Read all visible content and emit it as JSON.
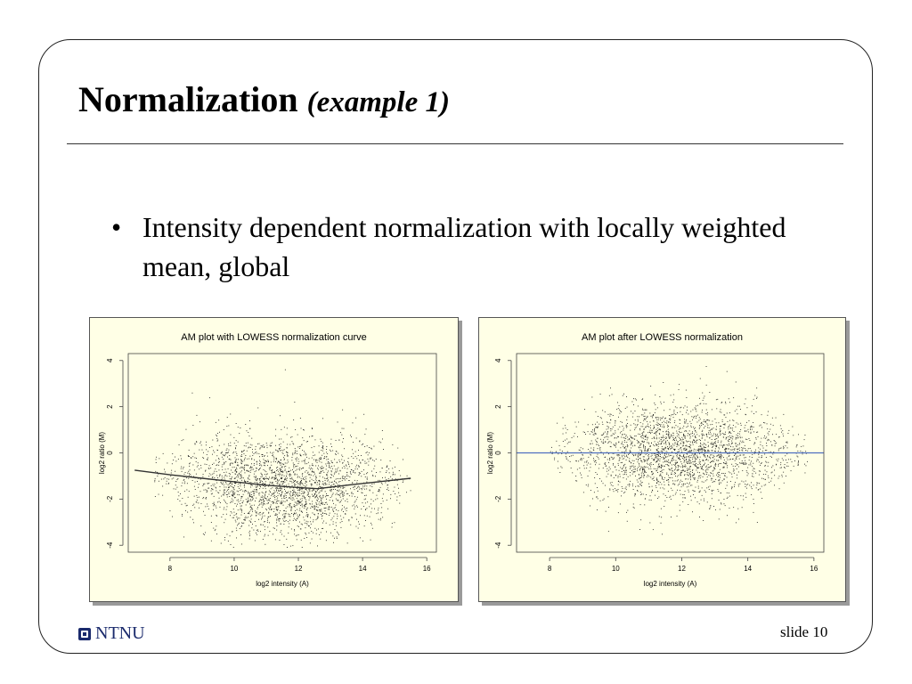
{
  "slide": {
    "title_main": "Normalization",
    "title_sub": "(example 1)",
    "bullet_marker": "•",
    "bullet_text": "Intensity dependent normalization with locally weighted mean, global",
    "logo_text": "NTNU",
    "slide_number": "slide 10"
  },
  "chart_data": [
    {
      "type": "scatter",
      "title": "AM plot with LOWESS normalization curve",
      "xlabel": "log2 intensity (A)",
      "ylabel": "log2 ratio (M)",
      "xlim": [
        6.7,
        16.3
      ],
      "ylim": [
        -4.3,
        4.3
      ],
      "xticks": [
        8,
        10,
        12,
        14,
        16
      ],
      "yticks": [
        -4,
        -2,
        0,
        2,
        4
      ],
      "point_distribution": {
        "x_range": [
          7.5,
          15.5
        ],
        "center_curve": "lowess",
        "spread": 1.1
      },
      "lowess_curve": {
        "x": [
          6.9,
          8.0,
          9.0,
          10.0,
          11.0,
          12.0,
          12.6,
          13.5,
          14.5,
          15.5
        ],
        "y": [
          -0.75,
          -0.95,
          -1.1,
          -1.25,
          -1.4,
          -1.5,
          -1.55,
          -1.4,
          -1.25,
          -1.1
        ]
      },
      "background": "#ffffe6"
    },
    {
      "type": "scatter",
      "title": "AM plot after LOWESS normalization",
      "xlabel": "log2 intensity (A)",
      "ylabel": "log2 ratio (M)",
      "xlim": [
        7.0,
        16.3
      ],
      "ylim": [
        -4.3,
        4.3
      ],
      "xticks": [
        8,
        10,
        12,
        14,
        16
      ],
      "yticks": [
        -4,
        -2,
        0,
        2,
        4
      ],
      "point_distribution": {
        "x_range": [
          8.0,
          15.8
        ],
        "center_curve": "zero",
        "spread": 1.1
      },
      "reference_line": {
        "y": 0,
        "color": "#4f6fc0"
      },
      "background": "#ffffe6"
    }
  ]
}
